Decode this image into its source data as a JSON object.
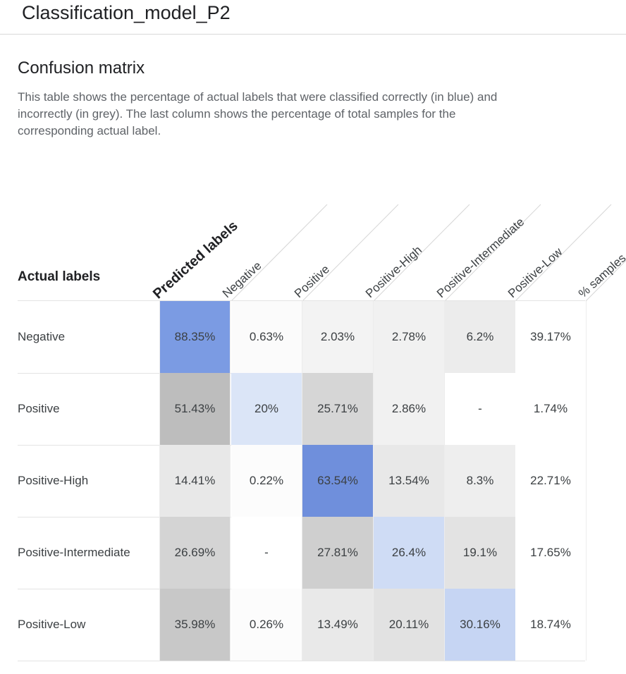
{
  "header": {
    "title": "Classification_model_P2"
  },
  "section": {
    "title": "Confusion matrix",
    "description": "This table shows the percentage of actual labels that were classified correctly (in blue) and incorrectly (in grey). The last column shows the percentage of total samples for the corresponding actual label."
  },
  "matrix": {
    "actual_labels_heading": "Actual labels",
    "predicted_labels_heading": "Predicted labels",
    "columns": [
      "Negative",
      "Positive",
      "Positive-High",
      "Positive-Intermediate",
      "Positive-Low",
      "% samples"
    ],
    "rows": [
      {
        "label": "Negative",
        "cells": [
          "88.35%",
          "0.63%",
          "2.03%",
          "2.78%",
          "6.2%",
          "39.17%"
        ]
      },
      {
        "label": "Positive",
        "cells": [
          "51.43%",
          "20%",
          "25.71%",
          "2.86%",
          "-",
          "1.74%"
        ]
      },
      {
        "label": "Positive-High",
        "cells": [
          "14.41%",
          "0.22%",
          "63.54%",
          "13.54%",
          "8.3%",
          "22.71%"
        ]
      },
      {
        "label": "Positive-Intermediate",
        "cells": [
          "26.69%",
          "-",
          "27.81%",
          "26.4%",
          "19.1%",
          "17.65%"
        ]
      },
      {
        "label": "Positive-Low",
        "cells": [
          "35.98%",
          "0.26%",
          "13.49%",
          "20.11%",
          "30.16%",
          "18.74%"
        ]
      }
    ],
    "colors": {
      "correct_strong": "#7b9be3",
      "correct_light": "#ccd9f4",
      "incorrect_dark": "#bfbfbf",
      "incorrect_mid": "#d3d3d3",
      "incorrect_light": "#e6e6e6",
      "incorrect_faint": "#f3f3f3",
      "empty": "#ffffff"
    },
    "cell_colors": [
      [
        "#7b9be3",
        "#fbfbfb",
        "#f3f3f3",
        "#f1f1f1",
        "#ececec",
        "#ffffff"
      ],
      [
        "#bdbdbd",
        "#dbe5f7",
        "#d6d6d6",
        "#f1f1f1",
        "#ffffff",
        "#ffffff"
      ],
      [
        "#e8e8e8",
        "#fcfcfc",
        "#6f8fdc",
        "#e8e8e8",
        "#eeeeee",
        "#ffffff"
      ],
      [
        "#d4d4d4",
        "#ffffff",
        "#cfcfcf",
        "#cfdcf5",
        "#e3e3e3",
        "#ffffff"
      ],
      [
        "#c8c8c8",
        "#fcfcfc",
        "#e9e9e9",
        "#e2e2e2",
        "#c6d5f3",
        "#ffffff"
      ]
    ]
  }
}
